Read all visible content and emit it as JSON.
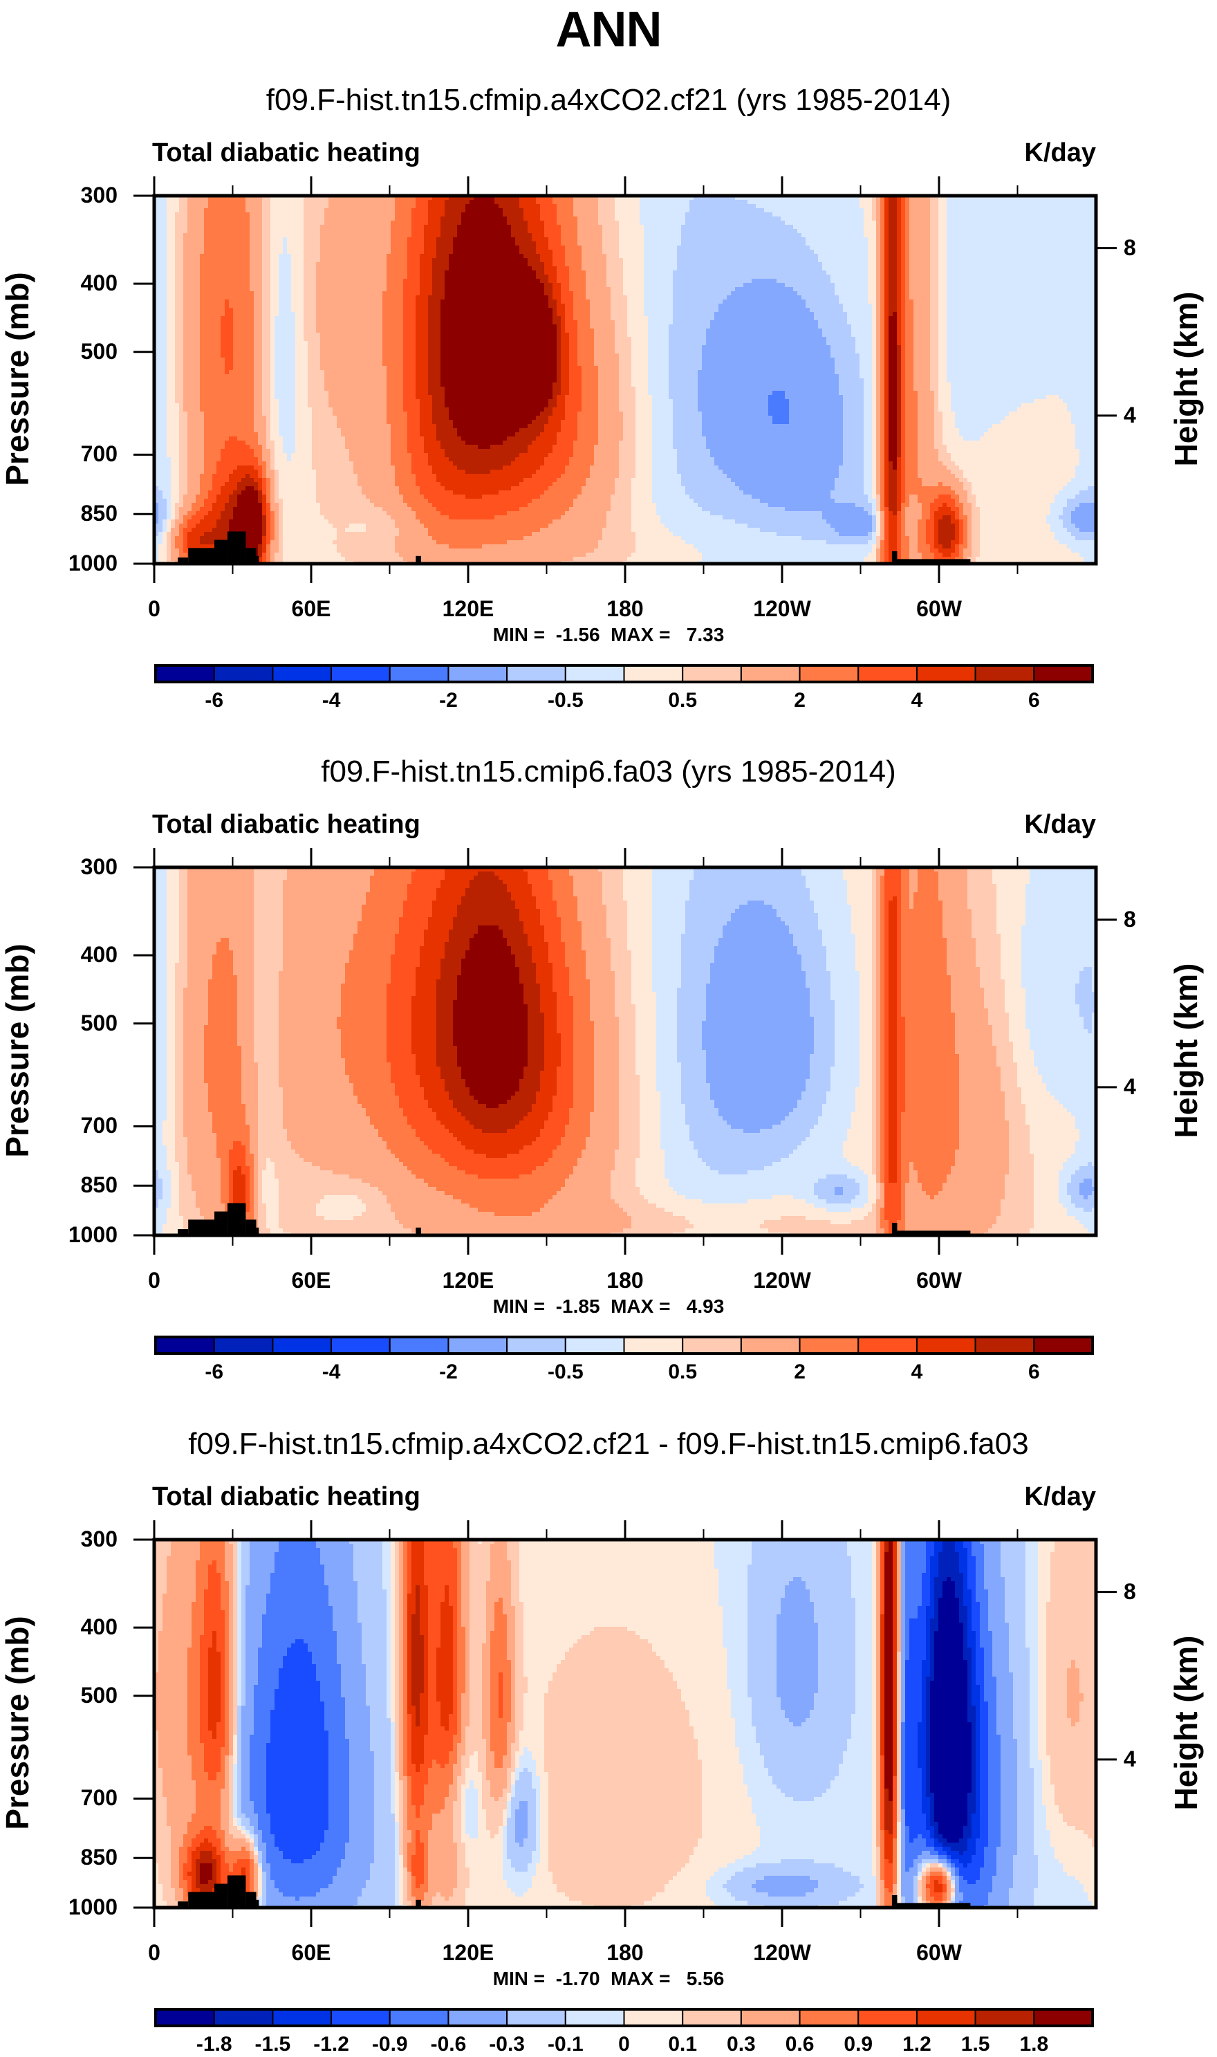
{
  "figure": {
    "title": "ANN"
  },
  "chart_data": [
    {
      "type": "heatmap",
      "subtitle": "f09.F-hist.tn15.cfmip.a4xCO2.cf21 (yrs 1985-2014)",
      "left_string": "Total diabatic heating",
      "right_string": "K/day",
      "ylabel": "Pressure (mb)",
      "ylabel_right": "Height (km)",
      "xlabel": "",
      "xlim": [
        0,
        360
      ],
      "ylim": [
        1000,
        300
      ],
      "x_ticks": [
        {
          "value": 0,
          "label": "0"
        },
        {
          "value": 60,
          "label": "60E"
        },
        {
          "value": 120,
          "label": "120E"
        },
        {
          "value": 180,
          "label": "180"
        },
        {
          "value": 240,
          "label": "120W"
        },
        {
          "value": 300,
          "label": "60W"
        }
      ],
      "x_minor_ticks": [
        30,
        90,
        150,
        210,
        270,
        330
      ],
      "y_ticks": [
        {
          "value": 300,
          "label": "300"
        },
        {
          "value": 400,
          "label": "400"
        },
        {
          "value": 500,
          "label": "500"
        },
        {
          "value": 700,
          "label": "700"
        },
        {
          "value": 850,
          "label": "850"
        },
        {
          "value": 1000,
          "label": "1000"
        }
      ],
      "y_right_ticks": [
        {
          "value": 8,
          "label": "8",
          "pressure": 356
        },
        {
          "value": 4,
          "label": "4",
          "pressure": 616
        }
      ],
      "min_max_text": "MIN =  -1.56  MAX =   7.33",
      "min": -1.56,
      "max": 7.33,
      "levels": [
        -6,
        -5,
        -4,
        -3,
        -2,
        -1,
        -0.5,
        0,
        0.5,
        1,
        2,
        3,
        4,
        5,
        6
      ],
      "level_labels": [
        "-6",
        "",
        "-4",
        "",
        "-2",
        "",
        "-0.5",
        "",
        "0.5",
        "",
        "2",
        "",
        "4",
        "",
        "6"
      ],
      "background": 0.2,
      "features": [
        {
          "lon": 2,
          "p": 600,
          "dlon": 6,
          "dp": 400,
          "v": -0.6
        },
        {
          "lon": 28,
          "p": 470,
          "dlon": 12,
          "dp": 250,
          "v": 2.8
        },
        {
          "lon": 30,
          "p": 900,
          "dlon": 8,
          "dp": 120,
          "v": 4.5
        },
        {
          "lon": 38,
          "p": 880,
          "dlon": 4,
          "dp": 100,
          "v": 5.5
        },
        {
          "lon": 15,
          "p": 930,
          "dlon": 6,
          "dp": 60,
          "v": 3.5
        },
        {
          "lon": 48,
          "p": 450,
          "dlon": 7,
          "dp": 180,
          "v": -1.3
        },
        {
          "lon": 50,
          "p": 700,
          "dlon": 8,
          "dp": 200,
          "v": -0.5
        },
        {
          "lon": 75,
          "p": 400,
          "dlon": 20,
          "dp": 150,
          "v": 1.0
        },
        {
          "lon": 75,
          "p": 700,
          "dlon": 25,
          "dp": 200,
          "v": 0.5
        },
        {
          "lon": 108,
          "p": 480,
          "dlon": 12,
          "dp": 250,
          "v": 3.2
        },
        {
          "lon": 125,
          "p": 450,
          "dlon": 12,
          "dp": 220,
          "v": 3.6
        },
        {
          "lon": 140,
          "p": 480,
          "dlon": 16,
          "dp": 230,
          "v": 4.2
        },
        {
          "lon": 145,
          "p": 500,
          "dlon": 6,
          "dp": 60,
          "v": 5.5
        },
        {
          "lon": 115,
          "p": 800,
          "dlon": 20,
          "dp": 150,
          "v": 1.2
        },
        {
          "lon": 160,
          "p": 650,
          "dlon": 18,
          "dp": 200,
          "v": 1.5
        },
        {
          "lon": 90,
          "p": 880,
          "dlon": 12,
          "dp": 40,
          "v": -0.5
        },
        {
          "lon": 205,
          "p": 550,
          "dlon": 18,
          "dp": 350,
          "v": -0.8
        },
        {
          "lon": 238,
          "p": 560,
          "dlon": 18,
          "dp": 160,
          "v": -1.5
        },
        {
          "lon": 250,
          "p": 750,
          "dlon": 20,
          "dp": 200,
          "v": -1.0
        },
        {
          "lon": 270,
          "p": 880,
          "dlon": 8,
          "dp": 40,
          "v": -1.3
        },
        {
          "lon": 282,
          "p": 580,
          "dlon": 3,
          "dp": 500,
          "v": 5.5
        },
        {
          "lon": 290,
          "p": 600,
          "dlon": 7,
          "dp": 400,
          "v": 2.2
        },
        {
          "lon": 303,
          "p": 900,
          "dlon": 5,
          "dp": 80,
          "v": 5.5
        },
        {
          "lon": 288,
          "p": 860,
          "dlon": 4,
          "dp": 40,
          "v": -0.6
        },
        {
          "lon": 320,
          "p": 450,
          "dlon": 25,
          "dp": 200,
          "v": -0.8
        },
        {
          "lon": 330,
          "p": 700,
          "dlon": 15,
          "dp": 200,
          "v": 0.4
        },
        {
          "lon": 355,
          "p": 860,
          "dlon": 8,
          "dp": 50,
          "v": -1.4
        },
        {
          "lon": 180,
          "p": 950,
          "dlon": 60,
          "dp": 60,
          "v": 0.3
        }
      ],
      "topography": [
        {
          "lon0": 9,
          "lon1": 13,
          "p_top": 980
        },
        {
          "lon0": 13,
          "lon1": 23,
          "p_top": 950
        },
        {
          "lon0": 23,
          "lon1": 28,
          "p_top": 925
        },
        {
          "lon0": 28,
          "lon1": 35,
          "p_top": 900
        },
        {
          "lon0": 35,
          "lon1": 39,
          "p_top": 950
        },
        {
          "lon0": 39,
          "lon1": 40,
          "p_top": 975
        },
        {
          "lon0": 100,
          "lon1": 102,
          "p_top": 975
        },
        {
          "lon0": 282,
          "lon1": 284,
          "p_top": 960
        },
        {
          "lon0": 284,
          "lon1": 312,
          "p_top": 985
        }
      ]
    },
    {
      "type": "heatmap",
      "subtitle": "f09.F-hist.tn15.cmip6.fa03 (yrs 1985-2014)",
      "left_string": "Total diabatic heating",
      "right_string": "K/day",
      "ylabel": "Pressure (mb)",
      "ylabel_right": "Height (km)",
      "xlabel": "",
      "xlim": [
        0,
        360
      ],
      "ylim": [
        1000,
        300
      ],
      "x_ticks": [
        {
          "value": 0,
          "label": "0"
        },
        {
          "value": 60,
          "label": "60E"
        },
        {
          "value": 120,
          "label": "120E"
        },
        {
          "value": 180,
          "label": "180"
        },
        {
          "value": 240,
          "label": "120W"
        },
        {
          "value": 300,
          "label": "60W"
        }
      ],
      "x_minor_ticks": [
        30,
        90,
        150,
        210,
        270,
        330
      ],
      "y_ticks": [
        {
          "value": 300,
          "label": "300"
        },
        {
          "value": 400,
          "label": "400"
        },
        {
          "value": 500,
          "label": "500"
        },
        {
          "value": 700,
          "label": "700"
        },
        {
          "value": 850,
          "label": "850"
        },
        {
          "value": 1000,
          "label": "1000"
        }
      ],
      "y_right_ticks": [
        {
          "value": 8,
          "label": "8",
          "pressure": 356
        },
        {
          "value": 4,
          "label": "4",
          "pressure": 616
        }
      ],
      "min_max_text": "MIN =  -1.85  MAX =   4.93",
      "min": -1.85,
      "max": 4.93,
      "levels": [
        -6,
        -5,
        -4,
        -3,
        -2,
        -1,
        -0.5,
        0,
        0.5,
        1,
        2,
        3,
        4,
        5,
        6
      ],
      "level_labels": [
        "-6",
        "",
        "-4",
        "",
        "-2",
        "",
        "-0.5",
        "",
        "0.5",
        "",
        "2",
        "",
        "4",
        "",
        "6"
      ],
      "background": 0.3,
      "features": [
        {
          "lon": 2,
          "p": 650,
          "dlon": 6,
          "dp": 400,
          "v": -0.6
        },
        {
          "lon": 25,
          "p": 550,
          "dlon": 12,
          "dp": 300,
          "v": 1.8
        },
        {
          "lon": 33,
          "p": 870,
          "dlon": 4,
          "dp": 100,
          "v": 3.5
        },
        {
          "lon": 42,
          "p": 500,
          "dlon": 5,
          "dp": 200,
          "v": -1.0
        },
        {
          "lon": 40,
          "p": 850,
          "dlon": 5,
          "dp": 80,
          "v": -0.6
        },
        {
          "lon": 75,
          "p": 500,
          "dlon": 25,
          "dp": 250,
          "v": 1.6
        },
        {
          "lon": 105,
          "p": 500,
          "dlon": 14,
          "dp": 250,
          "v": 2.4
        },
        {
          "lon": 125,
          "p": 480,
          "dlon": 12,
          "dp": 220,
          "v": 2.8
        },
        {
          "lon": 140,
          "p": 500,
          "dlon": 16,
          "dp": 220,
          "v": 3.5
        },
        {
          "lon": 150,
          "p": 650,
          "dlon": 25,
          "dp": 250,
          "v": 1.5
        },
        {
          "lon": 75,
          "p": 900,
          "dlon": 10,
          "dp": 40,
          "v": -0.5
        },
        {
          "lon": 210,
          "p": 550,
          "dlon": 20,
          "dp": 350,
          "v": -0.9
        },
        {
          "lon": 238,
          "p": 520,
          "dlon": 18,
          "dp": 180,
          "v": -1.6
        },
        {
          "lon": 262,
          "p": 870,
          "dlon": 8,
          "dp": 40,
          "v": -1.3
        },
        {
          "lon": 282,
          "p": 600,
          "dlon": 3,
          "dp": 450,
          "v": 3.8
        },
        {
          "lon": 295,
          "p": 550,
          "dlon": 9,
          "dp": 350,
          "v": 2.2
        },
        {
          "lon": 315,
          "p": 700,
          "dlon": 12,
          "dp": 250,
          "v": 1.2
        },
        {
          "lon": 345,
          "p": 450,
          "dlon": 15,
          "dp": 150,
          "v": -0.8
        },
        {
          "lon": 355,
          "p": 860,
          "dlon": 6,
          "dp": 50,
          "v": -1.2
        },
        {
          "lon": 200,
          "p": 960,
          "dlon": 60,
          "dp": 50,
          "v": 0.6
        }
      ],
      "topography": [
        {
          "lon0": 9,
          "lon1": 13,
          "p_top": 980
        },
        {
          "lon0": 13,
          "lon1": 23,
          "p_top": 950
        },
        {
          "lon0": 23,
          "lon1": 28,
          "p_top": 925
        },
        {
          "lon0": 28,
          "lon1": 35,
          "p_top": 900
        },
        {
          "lon0": 35,
          "lon1": 39,
          "p_top": 950
        },
        {
          "lon0": 39,
          "lon1": 40,
          "p_top": 975
        },
        {
          "lon0": 100,
          "lon1": 102,
          "p_top": 975
        },
        {
          "lon0": 282,
          "lon1": 284,
          "p_top": 960
        },
        {
          "lon0": 284,
          "lon1": 312,
          "p_top": 985
        }
      ]
    },
    {
      "type": "heatmap",
      "subtitle": "f09.F-hist.tn15.cfmip.a4xCO2.cf21 - f09.F-hist.tn15.cmip6.fa03",
      "left_string": "Total diabatic heating",
      "right_string": "K/day",
      "ylabel": "Pressure (mb)",
      "ylabel_right": "Height (km)",
      "xlabel": "",
      "xlim": [
        0,
        360
      ],
      "ylim": [
        1000,
        300
      ],
      "x_ticks": [
        {
          "value": 0,
          "label": "0"
        },
        {
          "value": 60,
          "label": "60E"
        },
        {
          "value": 120,
          "label": "120E"
        },
        {
          "value": 180,
          "label": "180"
        },
        {
          "value": 240,
          "label": "120W"
        },
        {
          "value": 300,
          "label": "60W"
        }
      ],
      "x_minor_ticks": [
        30,
        90,
        150,
        210,
        270,
        330
      ],
      "y_ticks": [
        {
          "value": 300,
          "label": "300"
        },
        {
          "value": 400,
          "label": "400"
        },
        {
          "value": 500,
          "label": "500"
        },
        {
          "value": 700,
          "label": "700"
        },
        {
          "value": 850,
          "label": "850"
        },
        {
          "value": 1000,
          "label": "1000"
        }
      ],
      "y_right_ticks": [
        {
          "value": 8,
          "label": "8",
          "pressure": 356
        },
        {
          "value": 4,
          "label": "4",
          "pressure": 616
        }
      ],
      "min_max_text": "MIN =  -1.70  MAX =   5.56",
      "min": -1.7,
      "max": 5.56,
      "levels": [
        -1.8,
        -1.5,
        -1.2,
        -0.9,
        -0.6,
        -0.3,
        -0.1,
        0,
        0.1,
        0.3,
        0.6,
        0.9,
        1.2,
        1.5,
        1.8
      ],
      "level_labels": [
        "-1.8",
        "-1.5",
        "-1.2",
        "-0.9",
        "-0.6",
        "-0.3",
        "-0.1",
        "0",
        "0.1",
        "0.3",
        "0.6",
        "0.9",
        "1.2",
        "1.5",
        "1.8"
      ],
      "background": -0.05,
      "features": [
        {
          "lon": 12,
          "p": 550,
          "dlon": 8,
          "dp": 300,
          "v": 0.6
        },
        {
          "lon": 24,
          "p": 500,
          "dlon": 5,
          "dp": 200,
          "v": 1.3
        },
        {
          "lon": 20,
          "p": 900,
          "dlon": 6,
          "dp": 80,
          "v": 1.8
        },
        {
          "lon": 35,
          "p": 900,
          "dlon": 4,
          "dp": 80,
          "v": 1.6
        },
        {
          "lon": 55,
          "p": 500,
          "dlon": 15,
          "dp": 250,
          "v": -0.8
        },
        {
          "lon": 55,
          "p": 800,
          "dlon": 20,
          "dp": 200,
          "v": -0.6
        },
        {
          "lon": 100,
          "p": 450,
          "dlon": 4,
          "dp": 250,
          "v": 1.6
        },
        {
          "lon": 112,
          "p": 500,
          "dlon": 5,
          "dp": 280,
          "v": 1.4
        },
        {
          "lon": 101,
          "p": 900,
          "dlon": 3,
          "dp": 80,
          "v": 0.8
        },
        {
          "lon": 115,
          "p": 700,
          "dlon": 5,
          "dp": 100,
          "v": -0.6
        },
        {
          "lon": 132,
          "p": 500,
          "dlon": 4,
          "dp": 150,
          "v": 0.9
        },
        {
          "lon": 140,
          "p": 750,
          "dlon": 5,
          "dp": 100,
          "v": -0.5
        },
        {
          "lon": 175,
          "p": 700,
          "dlon": 35,
          "dp": 300,
          "v": 0.25
        },
        {
          "lon": 245,
          "p": 450,
          "dlon": 12,
          "dp": 150,
          "v": -0.35
        },
        {
          "lon": 240,
          "p": 930,
          "dlon": 15,
          "dp": 40,
          "v": -0.4
        },
        {
          "lon": 281,
          "p": 500,
          "dlon": 2.5,
          "dp": 350,
          "v": 2.4
        },
        {
          "lon": 288,
          "p": 600,
          "dlon": 3,
          "dp": 300,
          "v": -0.7
        },
        {
          "lon": 300,
          "p": 930,
          "dlon": 5,
          "dp": 60,
          "v": 2.4
        },
        {
          "lon": 303,
          "p": 550,
          "dlon": 7,
          "dp": 250,
          "v": -1.9
        },
        {
          "lon": 310,
          "p": 700,
          "dlon": 12,
          "dp": 300,
          "v": -1.0
        },
        {
          "lon": 350,
          "p": 500,
          "dlon": 8,
          "dp": 200,
          "v": 0.35
        }
      ],
      "topography": [
        {
          "lon0": 9,
          "lon1": 13,
          "p_top": 980
        },
        {
          "lon0": 13,
          "lon1": 23,
          "p_top": 950
        },
        {
          "lon0": 23,
          "lon1": 28,
          "p_top": 925
        },
        {
          "lon0": 28,
          "lon1": 35,
          "p_top": 900
        },
        {
          "lon0": 35,
          "lon1": 39,
          "p_top": 950
        },
        {
          "lon0": 39,
          "lon1": 40,
          "p_top": 975
        },
        {
          "lon0": 100,
          "lon1": 102,
          "p_top": 975
        },
        {
          "lon0": 282,
          "lon1": 284,
          "p_top": 960
        },
        {
          "lon0": 284,
          "lon1": 312,
          "p_top": 985
        }
      ]
    }
  ],
  "colormap": [
    "#000096",
    "#0022bb",
    "#0033e6",
    "#1a4cff",
    "#4a7bff",
    "#85a8ff",
    "#b3ccff",
    "#d6e8ff",
    "#ffead9",
    "#ffcbb3",
    "#ffaa85",
    "#ff7a45",
    "#ff521f",
    "#e63300",
    "#b82200",
    "#8c0000"
  ]
}
